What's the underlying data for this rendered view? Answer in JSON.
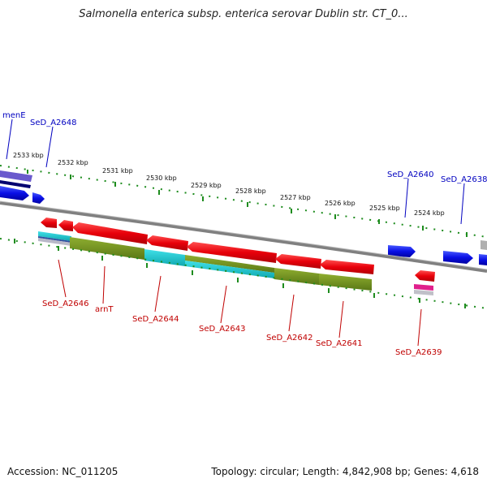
{
  "title": "Salmonella enterica subsp. enterica serovar Dublin str. CT_0...",
  "footer": {
    "accession": "Accession: NC_011205",
    "topology": "Topology: circular; Length: 4,842,908 bp; Genes: 4,618"
  },
  "kbp_labels": [
    "2533 kbp",
    "2532 kbp",
    "2531 kbp",
    "2530 kbp",
    "2529 kbp",
    "2528 kbp",
    "2527 kbp",
    "2526 kbp",
    "2525 kbp",
    "2524 kbp"
  ],
  "gene_labels_forward": [
    "menE",
    "SeD_A2648",
    "SeD_A2640",
    "SeD_A2638"
  ],
  "gene_labels_reverse": [
    "SeD_A2646",
    "arnT",
    "SeD_A2644",
    "SeD_A2643",
    "SeD_A2642",
    "SeD_A2641",
    "SeD_A2639"
  ],
  "colors": {
    "forward_gene": "#0a10e6",
    "reverse_gene": "#e8000a",
    "backbone": "#808080",
    "tick": "#1e8c1e",
    "feature_cyan": "#20c8d0",
    "feature_olive": "#6c8c1c",
    "feature_purple": "#6a5acd"
  }
}
